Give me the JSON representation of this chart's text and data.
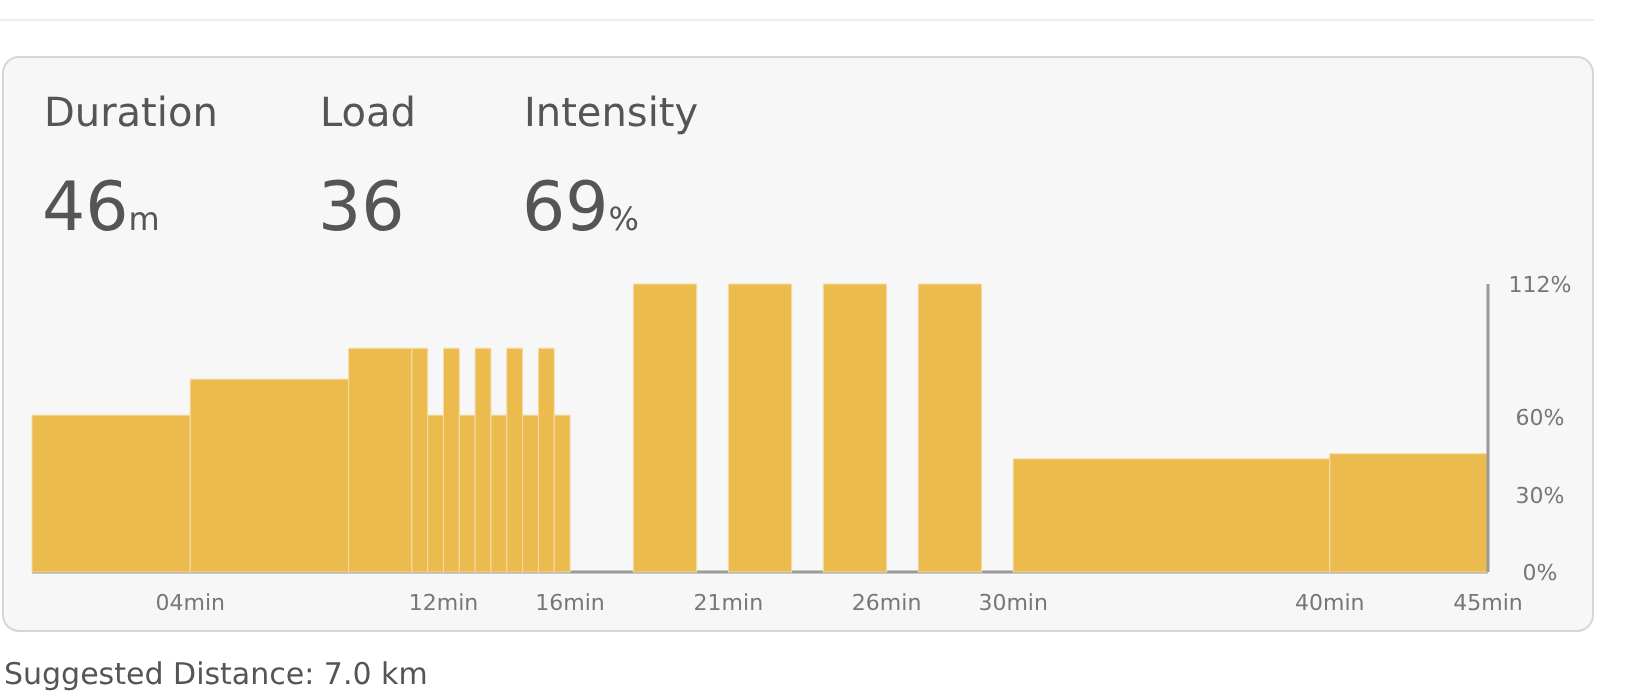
{
  "chart_data": [
    {
      "type": "other",
      "annotations": [
        "Duration",
        "46m",
        "Load",
        "36",
        "Intensity",
        "69%"
      ]
    },
    {
      "type": "histogram",
      "bins": [
        -1,
        4,
        9,
        11,
        11.5,
        12,
        12.5,
        13,
        13.5,
        14,
        14.5,
        15,
        15.5,
        16,
        18,
        20,
        21,
        23,
        24,
        26,
        27,
        29,
        30,
        40,
        45
      ],
      "values": [
        61,
        75,
        87,
        87,
        61,
        87,
        61,
        87,
        61,
        87,
        61,
        87,
        61,
        0,
        112,
        0,
        112,
        0,
        112,
        0,
        112,
        0,
        44,
        46
      ],
      "color": "#ebbb4e",
      "xlim": [
        -1,
        45
      ],
      "xticks": [
        {
          "value": 4,
          "label": "04min"
        },
        {
          "value": 12,
          "label": "12min"
        },
        {
          "value": 16,
          "label": "16min"
        },
        {
          "value": 21,
          "label": "21min"
        },
        {
          "value": 26,
          "label": "26min"
        },
        {
          "value": 30,
          "label": "30min"
        },
        {
          "value": 40,
          "label": "40min"
        },
        {
          "value": 45,
          "label": "45min"
        }
      ],
      "ylim": [
        0,
        112
      ],
      "yticks": [
        {
          "value": 0,
          "label": "0%"
        },
        {
          "value": 30,
          "label": "30%"
        },
        {
          "value": 60,
          "label": "60%"
        },
        {
          "value": 112,
          "label": "112%"
        }
      ],
      "annotations": [
        "Suggested Distance: 7.0 km"
      ]
    }
  ]
}
